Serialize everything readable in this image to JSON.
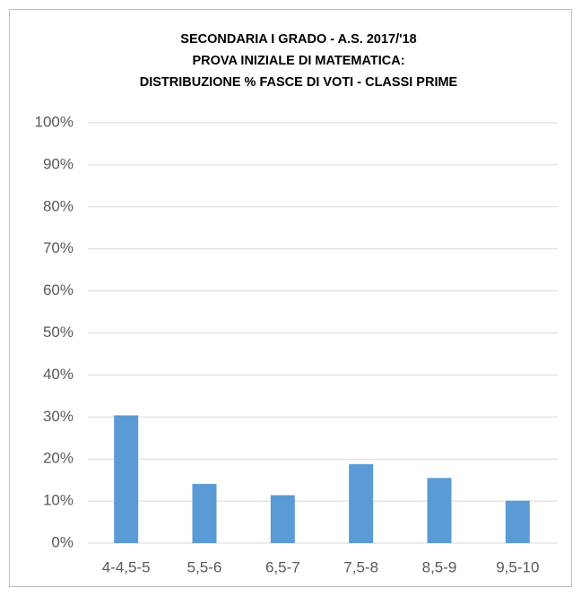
{
  "chart_data": {
    "type": "bar",
    "title": [
      "SECONDARIA I GRADO - A.S. 2017/'18",
      "PROVA INIZIALE DI MATEMATICA:",
      "DISTRIBUZIONE % FASCE DI VOTI - CLASSI PRIME"
    ],
    "categories": [
      "4-4,5-5",
      "5,5-6",
      "6,5-7",
      "7,5-8",
      "8,5-9",
      "9,5-10"
    ],
    "values": [
      30.4,
      14.1,
      11.4,
      18.8,
      15.5,
      10.1
    ],
    "color": "#5b9bd5",
    "ylim": [
      0,
      100
    ],
    "yticks": [
      {
        "value": 0,
        "label": "0%"
      },
      {
        "value": 10,
        "label": "10%"
      },
      {
        "value": 20,
        "label": "20%"
      },
      {
        "value": 30,
        "label": "30%"
      },
      {
        "value": 40,
        "label": "40%"
      },
      {
        "value": 50,
        "label": "50%"
      },
      {
        "value": 60,
        "label": "60%"
      },
      {
        "value": 70,
        "label": "70%"
      },
      {
        "value": 80,
        "label": "80%"
      },
      {
        "value": 90,
        "label": "90%"
      },
      {
        "value": 100,
        "label": "100%"
      }
    ],
    "grid": true
  }
}
